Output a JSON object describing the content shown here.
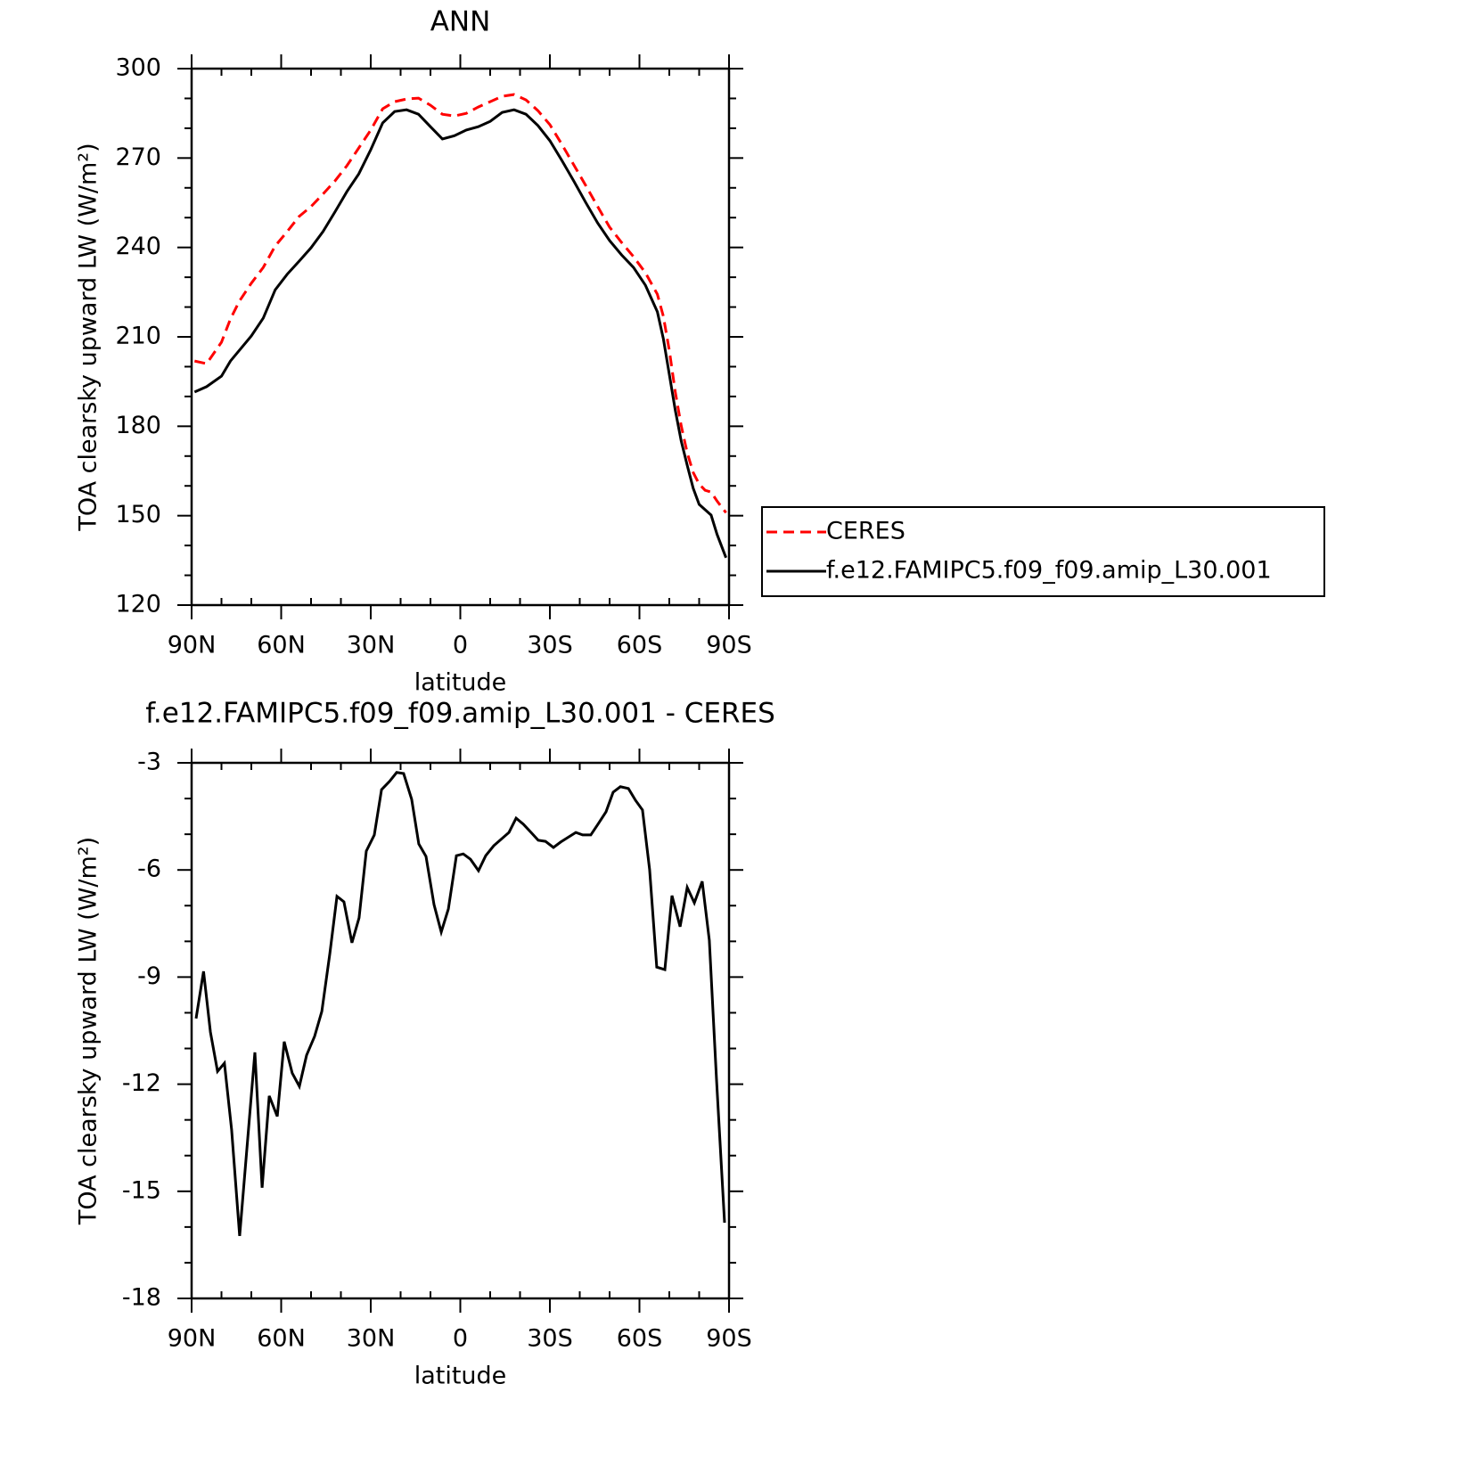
{
  "chart_data": [
    {
      "type": "line",
      "title": "ANN",
      "xlabel": "latitude",
      "ylabel": "TOA clearsky upward LW (W/m²)",
      "x": [
        89,
        85,
        80,
        77,
        74,
        70,
        66,
        62,
        58,
        54,
        50,
        46,
        42,
        38,
        34,
        30,
        26,
        22,
        18,
        14,
        10,
        6,
        2,
        -2,
        -6,
        -10,
        -14,
        -18,
        -22,
        -26,
        -30,
        -34,
        -38,
        -42,
        -46,
        -50,
        -54,
        -58,
        -62,
        -66,
        -68,
        -70,
        -72,
        -74,
        -76,
        -78,
        -80,
        -82,
        -84,
        -86,
        -89
      ],
      "series": [
        {
          "name": "CERES",
          "color": "#ff0000",
          "style": "dashed",
          "values": [
            201.9,
            201,
            208.2,
            216,
            222,
            228,
            233.3,
            240.5,
            245.3,
            250.4,
            253.7,
            257.9,
            262.3,
            267.4,
            273.4,
            279.4,
            286.5,
            288.9,
            289.8,
            290.1,
            287.7,
            284.7,
            284.1,
            285,
            287.1,
            288.9,
            290.7,
            291.3,
            289.5,
            285.9,
            281.2,
            274.6,
            267.7,
            260.8,
            253.7,
            246.8,
            241.7,
            236.9,
            231.5,
            224.3,
            216.9,
            205.5,
            191.5,
            180.1,
            171.1,
            164.5,
            160.6,
            158.5,
            157.9,
            154.9,
            151
          ]
        },
        {
          "name": "f.e12.FAMIPC5.f09_f09.amip_L30.001",
          "color": "#000000",
          "style": "solid",
          "values": [
            191.5,
            193.3,
            196.8,
            201.9,
            205.5,
            210.3,
            216.3,
            225.8,
            231,
            235.4,
            239.9,
            245.3,
            251.9,
            258.7,
            264.7,
            272.8,
            281.8,
            285.6,
            286.2,
            284.7,
            280.5,
            276.4,
            277.5,
            279.4,
            280.5,
            282.3,
            285.3,
            286.2,
            284.7,
            280.9,
            275.8,
            269.2,
            262.3,
            255.1,
            248.2,
            242.3,
            237.5,
            233.3,
            227.3,
            218.4,
            209.4,
            197.4,
            185.4,
            175,
            166.9,
            159.2,
            153.8,
            152,
            150.2,
            143.7,
            135.9
          ]
        }
      ],
      "xlim": [
        90,
        -90
      ],
      "xticks": [
        {
          "value": 90,
          "label": "90N"
        },
        {
          "value": 60,
          "label": "60N"
        },
        {
          "value": 30,
          "label": "30N"
        },
        0,
        {
          "value": -30,
          "label": "30S"
        },
        {
          "value": -60,
          "label": "60S"
        },
        {
          "value": -90,
          "label": "90S"
        }
      ],
      "ylim": [
        120,
        300
      ],
      "yticks": [
        120,
        150,
        180,
        210,
        240,
        270,
        300
      ],
      "legend": "right"
    },
    {
      "type": "line",
      "title": "f.e12.FAMIPC5.f09_f09.amip_L30.001 - CERES",
      "xlabel": "latitude",
      "ylabel": "TOA clearsky upward LW (W/m²)",
      "x": [
        88.5,
        86,
        83.7,
        81.3,
        79,
        76.6,
        73.9,
        68.8,
        66.4,
        64,
        61.3,
        59,
        56.3,
        53.9,
        51.5,
        48.8,
        46.4,
        43.7,
        41.3,
        39,
        36.3,
        33.9,
        31.5,
        28.8,
        26.4,
        23.7,
        21.3,
        19,
        16.3,
        13.9,
        11.5,
        8.8,
        6.4,
        4,
        1.3,
        -1,
        -3.4,
        -6.1,
        -8.5,
        -11.2,
        -16.3,
        -18.7,
        -21.1,
        -23.7,
        -26.1,
        -28.5,
        -31.2,
        -33.6,
        -38.7,
        -41,
        -43.7,
        -46.1,
        -48.8,
        -51.2,
        -53.6,
        -56.3,
        -58.7,
        -61,
        -63.4,
        -65.8,
        -68.5,
        -70.9,
        -73.6,
        -76,
        -78.4,
        -81,
        -83.4,
        -85.8,
        -88.5
      ],
      "series": [
        {
          "color": "#000000",
          "style": "solid",
          "values": [
            -10.16,
            -8.84,
            -10.54,
            -11.64,
            -11.41,
            -13.28,
            -16.25,
            -11.11,
            -14.9,
            -12.33,
            -12.9,
            -10.81,
            -11.69,
            -12.06,
            -11.19,
            -10.66,
            -9.96,
            -8.34,
            -6.74,
            -6.89,
            -8.04,
            -7.34,
            -5.47,
            -5.02,
            -3.75,
            -3.52,
            -3.27,
            -3.3,
            -4.02,
            -5.27,
            -5.62,
            -6.97,
            -7.74,
            -7.09,
            -5.6,
            -5.55,
            -5.7,
            -6.02,
            -5.6,
            -5.32,
            -4.95,
            -4.55,
            -4.72,
            -4.95,
            -5.17,
            -5.2,
            -5.37,
            -5.22,
            -4.95,
            -5.02,
            -5.02,
            -4.72,
            -4.37,
            -3.82,
            -3.67,
            -3.72,
            -4.05,
            -4.32,
            -5.99,
            -8.72,
            -8.79,
            -6.72,
            -7.59,
            -6.49,
            -6.92,
            -6.32,
            -7.97,
            -11.84,
            -15.88
          ]
        }
      ],
      "xlim": [
        90,
        -90
      ],
      "xticks": [
        {
          "value": 90,
          "label": "90N"
        },
        {
          "value": 60,
          "label": "60N"
        },
        {
          "value": 30,
          "label": "30N"
        },
        0,
        {
          "value": -30,
          "label": "30S"
        },
        {
          "value": -60,
          "label": "60S"
        },
        {
          "value": -90,
          "label": "90S"
        }
      ],
      "ylim": [
        -18,
        -3
      ],
      "yticks": [
        -18,
        -15,
        -12,
        -9,
        -6,
        -3
      ]
    }
  ]
}
